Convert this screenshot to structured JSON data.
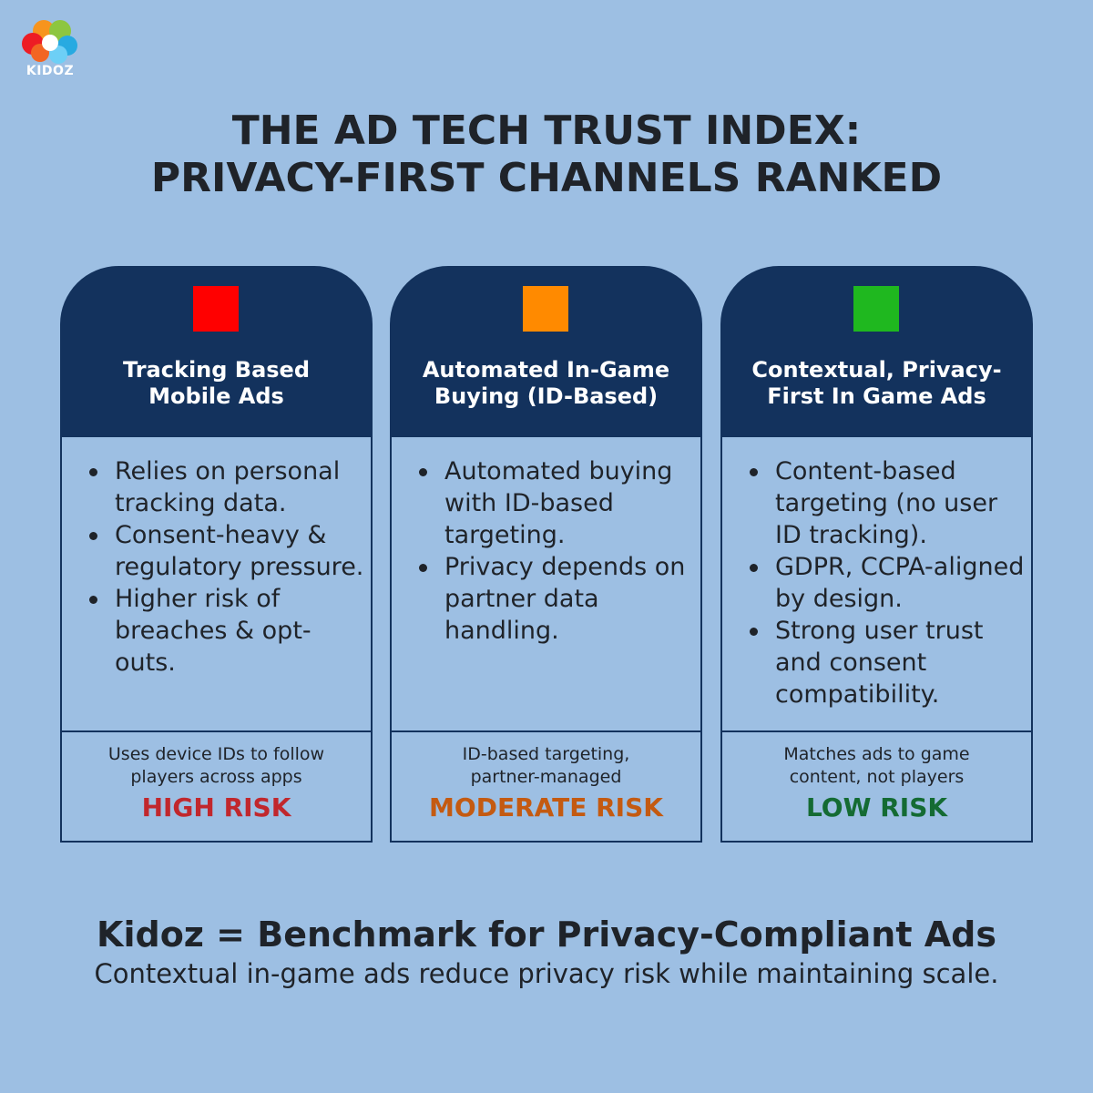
{
  "brand": {
    "logo_text": "KIDOZ",
    "logo_colors": [
      "#f7941d",
      "#8dc63f",
      "#ed1c24",
      "#27aae1",
      "#f26522"
    ]
  },
  "title": {
    "line1": "THE AD TECH TRUST INDEX:",
    "line2": "PRIVACY-FIRST CHANNELS RANKED"
  },
  "colors": {
    "card_header": "#13325d",
    "background": "#9dbfe3"
  },
  "cards": [
    {
      "swatch_color": "#ff0000",
      "title_line1": "Tracking Based",
      "title_line2": "Mobile Ads",
      "bullets": [
        "Relies on personal tracking data.",
        "Consent-heavy & regulatory pressure.",
        "Higher risk of breaches & opt-outs."
      ],
      "note_line1": "Uses device IDs to follow",
      "note_line2": "players across apps",
      "risk": "HIGH RISK",
      "risk_color": "#c1272d"
    },
    {
      "swatch_color": "#ff8a00",
      "title_line1": "Automated In-Game",
      "title_line2": "Buying (ID-Based)",
      "bullets": [
        "Automated buying with ID-based targeting.",
        "Privacy depends on partner data handling."
      ],
      "note_line1": "ID-based targeting,",
      "note_line2": "partner-managed",
      "risk": "MODERATE RISK",
      "risk_color": "#c45a11"
    },
    {
      "swatch_color": "#1fb81f",
      "title_line1": "Contextual, Privacy-",
      "title_line2": "First In Game Ads",
      "bullets": [
        "Content-based targeting (no user ID tracking).",
        "GDPR, CCPA-aligned by design.",
        "Strong user trust and consent compatibility."
      ],
      "note_line1": "Matches ads to game",
      "note_line2": "content, not players",
      "risk": "LOW RISK",
      "risk_color": "#146b33"
    }
  ],
  "footer": {
    "headline": "Kidoz = Benchmark for Privacy-Compliant Ads",
    "subtext": "Contextual in-game ads reduce privacy risk while maintaining scale."
  }
}
